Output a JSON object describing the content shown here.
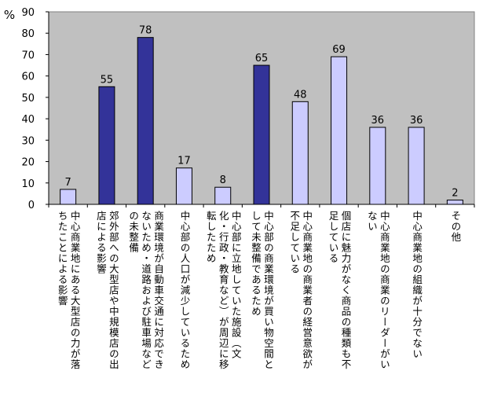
{
  "chart_data": {
    "type": "bar",
    "ylabel": "%",
    "ylim": [
      0,
      90
    ],
    "yticks": [
      0,
      10,
      20,
      30,
      40,
      50,
      60,
      70,
      80,
      90
    ],
    "grid": false,
    "plot_background": "#c0c0c0",
    "colors": {
      "highlight": "#333399",
      "normal": "#ccccff",
      "edge": "#000000"
    },
    "categories": [
      "中心商業地にある大型店の力が落ちたことによる影響",
      "郊外部への大型店や中規模店の出店による影響",
      "商業環境が自動車交通に対応できないため・道路および駐車場などの未整備",
      "中心部の人口が減少しているため",
      "中心部に立地していた施設（文化・行政・教育など）が周辺に移転したため",
      "中心部の商業環境が買い物空間として未整備であるため",
      "中心商業地の商業者の経営意欲が不足している",
      "個店に魅力がなく商品の種類も不足している",
      "中心商業地の商業のリーダーがいない",
      "中心商業地の組織が十分でない",
      "その他"
    ],
    "values": [
      7,
      55,
      78,
      17,
      8,
      65,
      48,
      69,
      36,
      36,
      2
    ],
    "highlighted": [
      false,
      true,
      true,
      false,
      false,
      true,
      false,
      false,
      false,
      false,
      false
    ],
    "x_label_lines": [
      [
        "中心商業地にある大型店の力が落",
        "ちたことによる影響"
      ],
      [
        "郊外部への大型店や中規模店の出",
        "店による影響"
      ],
      [
        "商業環境が自動車交通に対応でき",
        "ないため・道路および駐車場など",
        "の未整備"
      ],
      [
        "中心部の人口が減少しているため"
      ],
      [
        "中心部に立地していた施設（文",
        "化・行政・教育など）が周辺に移",
        "転したため"
      ],
      [
        "中心部の商業環境が買い物空間と",
        "して未整備であるため"
      ],
      [
        "中心商業地の商業者の経営意欲が",
        "不足している"
      ],
      [
        "個店に魅力がなく商品の種類も不",
        "足している"
      ],
      [
        "中心商業地の商業のリーダーがい",
        "ない"
      ],
      [
        "中心商業地の組織が十分でない"
      ],
      [
        "その他"
      ]
    ]
  }
}
